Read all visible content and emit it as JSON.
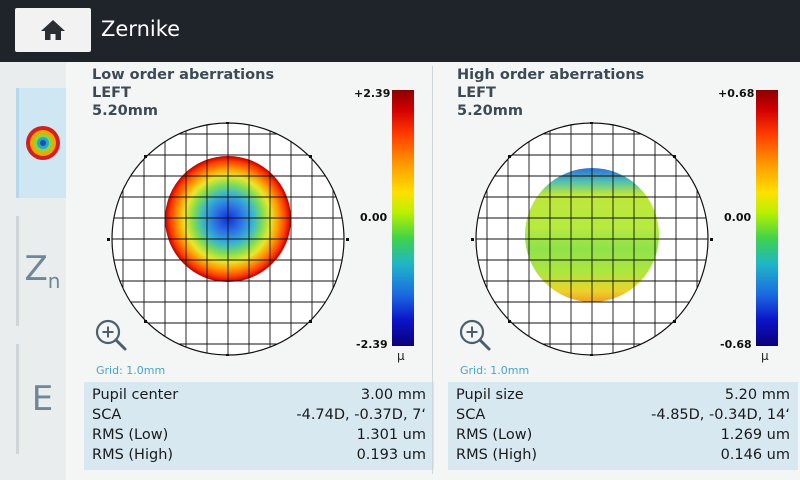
{
  "header": {
    "title": "Zernike",
    "home_icon": "home-icon"
  },
  "sidebar": {
    "tabs": [
      {
        "id": "map",
        "icon": "color-map-icon",
        "active": true
      },
      {
        "id": "zernike",
        "label": "Z",
        "sub": "n"
      },
      {
        "id": "e",
        "label": "E"
      }
    ]
  },
  "left_panel": {
    "title": "Low order aberrations",
    "eye": "LEFT",
    "size": "5.20mm",
    "scale": {
      "max": "+2.39",
      "mid": "0.00",
      "min": "-2.39",
      "unit": "μ"
    },
    "grid_note": "Grid: 1.0mm",
    "info": [
      {
        "label": "Pupil center",
        "value": "3.00 mm"
      },
      {
        "label": "SCA",
        "value": "-4.74D, -0.37D, 7‘"
      },
      {
        "label": "RMS (Low)",
        "value": "1.301 um"
      },
      {
        "label": "RMS (High)",
        "value": "0.193 um"
      }
    ]
  },
  "right_panel": {
    "title": "High order aberrations",
    "eye": "LEFT",
    "size": "5.20mm",
    "scale": {
      "max": "+0.68",
      "mid": "0.00",
      "min": "-0.68",
      "unit": "μ"
    },
    "grid_note": "Grid: 1.0mm",
    "info": [
      {
        "label": "Pupil size",
        "value": "5.20 mm"
      },
      {
        "label": "SCA",
        "value": "-4.85D, -0.34D, 14‘"
      },
      {
        "label": "RMS (Low)",
        "value": "1.269 um"
      },
      {
        "label": "RMS (High)",
        "value": "0.146 um"
      }
    ]
  }
}
